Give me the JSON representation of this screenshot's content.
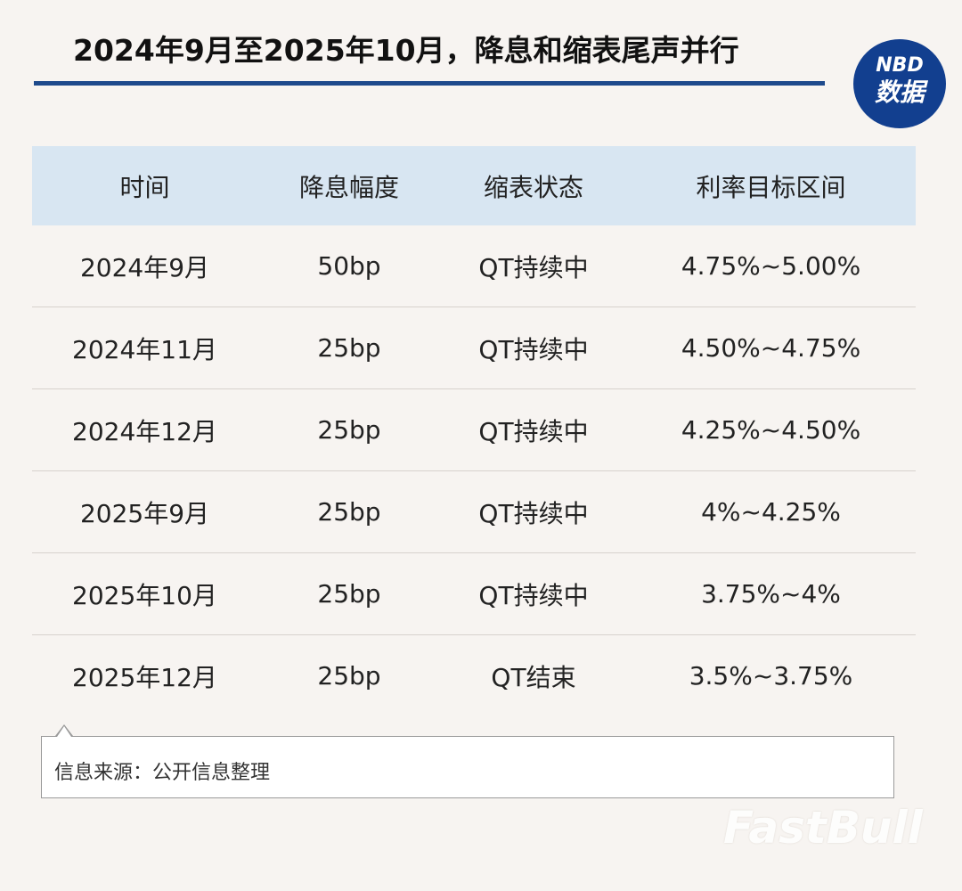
{
  "title": "2024年9月至2025年10月，降息和缩表尾声并行",
  "logo": {
    "top_text": "NBD",
    "bottom_text": "数据"
  },
  "table": {
    "headers": [
      "时间",
      "降息幅度",
      "缩表状态",
      "利率目标区间"
    ],
    "rows": [
      [
        "2024年9月",
        "50bp",
        "QT持续中",
        "4.75%~5.00%"
      ],
      [
        "2024年11月",
        "25bp",
        "QT持续中",
        "4.50%~4.75%"
      ],
      [
        "2024年12月",
        "25bp",
        "QT持续中",
        "4.25%~4.50%"
      ],
      [
        "2025年9月",
        "25bp",
        "QT持续中",
        "4%~4.25%"
      ],
      [
        "2025年10月",
        "25bp",
        "QT持续中",
        "3.75%~4%"
      ],
      [
        "2025年12月",
        "25bp",
        "QT结束",
        "3.5%~3.75%"
      ]
    ]
  },
  "source": "信息来源：公开信息整理",
  "watermark": "FastBull",
  "colors": {
    "title_rule": "#1e4a8c",
    "header_bg": "#d8e6f2",
    "logo_bg": "#123f8f"
  },
  "chart_data": {
    "type": "table",
    "title": "2024年9月至2025年10月，降息和缩表尾声并行",
    "columns": [
      "时间",
      "降息幅度",
      "缩表状态",
      "利率目标区间"
    ],
    "rows": [
      [
        "2024年9月",
        "50bp",
        "QT持续中",
        "4.75%~5.00%"
      ],
      [
        "2024年11月",
        "25bp",
        "QT持续中",
        "4.50%~4.75%"
      ],
      [
        "2024年12月",
        "25bp",
        "QT持续中",
        "4.25%~4.50%"
      ],
      [
        "2025年9月",
        "25bp",
        "QT持续中",
        "4%~4.25%"
      ],
      [
        "2025年10月",
        "25bp",
        "QT持续中",
        "3.75%~4%"
      ],
      [
        "2025年12月",
        "25bp",
        "QT结束",
        "3.5%~3.75%"
      ]
    ]
  }
}
